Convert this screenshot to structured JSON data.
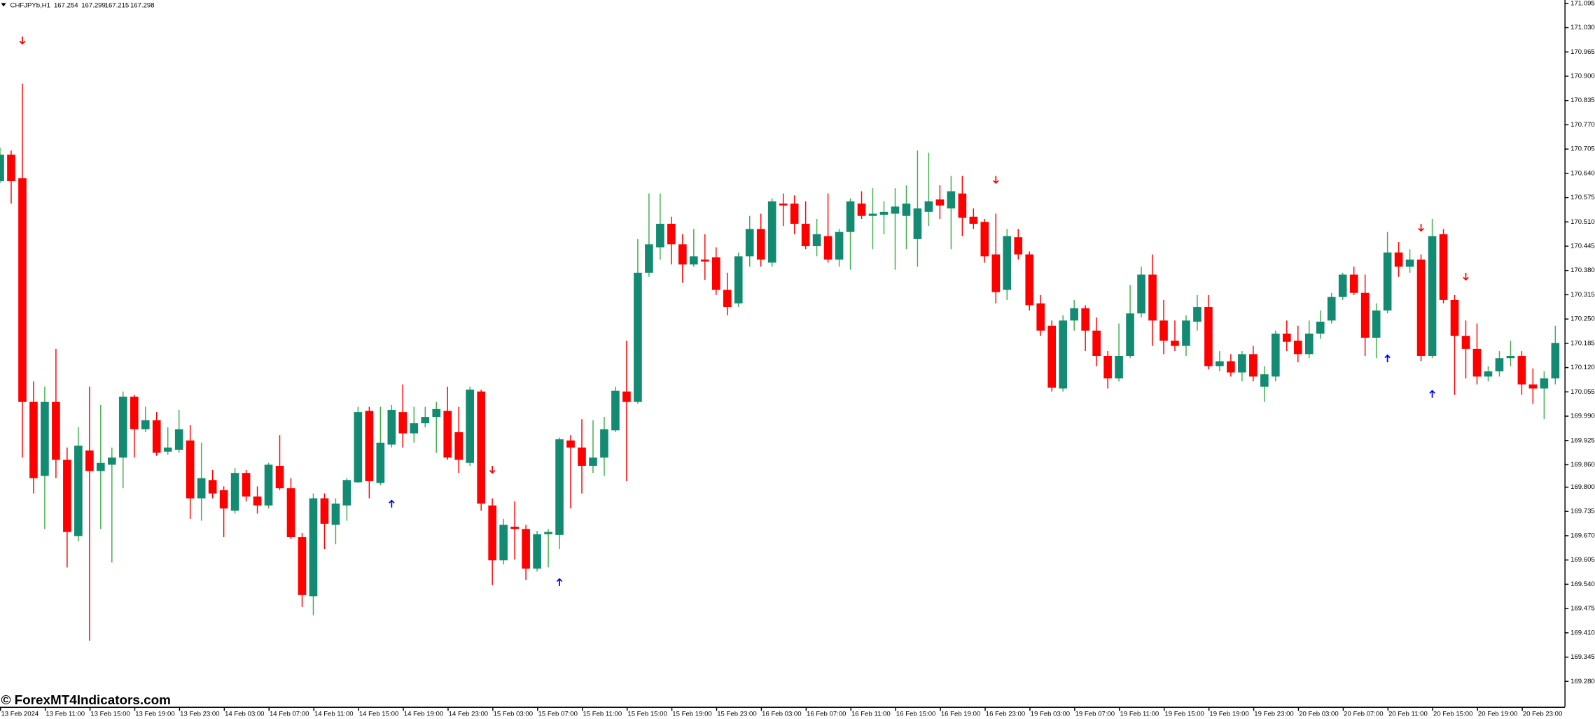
{
  "header": {
    "symbol": "CHFJPYb,H1",
    "ohlc": [
      167.254,
      167.299,
      167.215,
      167.298
    ]
  },
  "watermark": "© ForexMT4Indicators.com",
  "chart_data": {
    "type": "candlestick",
    "up_color": "#138a72",
    "down_color": "#ff0000",
    "up_wick_color": "#3fae49",
    "down_wick_color": "#ff0000",
    "buy_signal_color": "#0000ff",
    "sell_signal_color": "#ff0000",
    "ylim": [
      169.212,
      171.104
    ],
    "yticks": [
      171.095,
      {
        "value": 171.03,
        "label": "171.030"
      },
      170.965,
      {
        "value": 170.9,
        "label": "170.900"
      },
      170.835,
      {
        "value": 170.77,
        "label": "170.770"
      },
      170.705,
      {
        "value": 170.64,
        "label": "170.640"
      },
      170.575,
      {
        "value": 170.51,
        "label": "170.510"
      },
      170.445,
      {
        "value": 170.38,
        "label": "170.380"
      },
      170.315,
      {
        "value": 170.25,
        "label": "170.250"
      },
      170.185,
      {
        "value": 170.12,
        "label": "170.120"
      },
      170.055,
      {
        "value": 169.99,
        "label": "169.990"
      },
      169.925,
      {
        "value": 169.86,
        "label": "169.860"
      },
      {
        "value": 169.8,
        "label": "169.800"
      },
      169.735,
      {
        "value": 169.67,
        "label": "169.670"
      },
      169.605,
      {
        "value": 169.54,
        "label": "169.540"
      },
      169.475,
      {
        "value": 169.41,
        "label": "169.410"
      },
      169.345,
      {
        "value": 169.28,
        "label": "169.280"
      }
    ],
    "categories": [
      "13 Feb 2024",
      null,
      null,
      null,
      "13 Feb 11:00",
      null,
      null,
      null,
      "13 Feb 15:00",
      null,
      null,
      null,
      "13 Feb 19:00",
      null,
      null,
      null,
      "13 Feb 23:00",
      null,
      null,
      null,
      "14 Feb 03:00",
      null,
      null,
      null,
      "14 Feb 07:00",
      null,
      null,
      null,
      "14 Feb 11:00",
      null,
      null,
      null,
      "14 Feb 15:00",
      null,
      null,
      null,
      "14 Feb 19:00",
      null,
      null,
      null,
      "14 Feb 23:00",
      null,
      null,
      null,
      "15 Feb 03:00",
      null,
      null,
      null,
      "15 Feb 07:00",
      null,
      null,
      null,
      "15 Feb 11:00",
      null,
      null,
      null,
      "15 Feb 15:00",
      null,
      null,
      null,
      "15 Feb 19:00",
      null,
      null,
      null,
      "15 Feb 23:00",
      null,
      null,
      null,
      "16 Feb 03:00",
      null,
      null,
      null,
      "16 Feb 07:00",
      null,
      null,
      null,
      "16 Feb 11:00",
      null,
      null,
      null,
      "16 Feb 15:00",
      null,
      null,
      null,
      "16 Feb 19:00",
      null,
      null,
      null,
      "16 Feb 23:00",
      null,
      null,
      null,
      "19 Feb 03:00",
      null,
      null,
      null,
      "19 Feb 07:00",
      null,
      null,
      null,
      "19 Feb 11:00",
      null,
      null,
      null,
      "19 Feb 15:00",
      null,
      null,
      null,
      "19 Feb 19:00",
      null,
      null,
      null,
      "19 Feb 23:00",
      null,
      null,
      null,
      "20 Feb 03:00",
      null,
      null,
      null,
      "20 Feb 07:00",
      null,
      null,
      null,
      "20 Feb 11:00",
      null,
      null,
      null,
      "20 Feb 15:00",
      null,
      null,
      null,
      "20 Feb 19:00",
      null,
      null,
      null,
      "20 Feb 23:00",
      null,
      null,
      null
    ],
    "open": [
      170.619,
      170.69,
      170.627,
      170.028,
      169.83,
      170.028,
      169.873,
      169.669,
      169.898,
      169.843,
      169.86,
      169.879,
      170.042,
      169.955,
      169.979,
      169.895,
      169.9,
      169.925,
      169.77,
      169.819,
      169.792,
      169.737,
      169.838,
      169.775,
      169.751,
      169.857,
      169.797,
      169.666,
      169.508,
      169.77,
      169.699,
      169.751,
      169.813,
      170.004,
      169.811,
      169.914,
      170.001,
      169.944,
      169.971,
      169.988,
      170.004,
      169.947,
      169.865,
      170.056,
      169.751,
      169.604,
      169.694,
      169.688,
      169.582,
      169.674,
      169.672,
      169.925,
      169.906,
      169.857,
      169.879,
      169.952,
      170.056,
      170.028,
      170.374,
      170.442,
      170.505,
      170.45,
      170.396,
      170.409,
      170.415,
      170.328,
      170.292,
      170.418,
      170.491,
      170.401,
      170.559,
      170.559,
      170.505,
      170.445,
      170.472,
      170.409,
      170.483,
      170.559,
      170.526,
      170.529,
      170.532,
      170.526,
      170.464,
      170.537,
      170.57,
      170.546,
      170.586,
      170.524,
      170.51,
      170.423,
      170.328,
      170.469,
      170.423,
      170.292,
      170.232,
      170.064,
      170.246,
      170.279,
      170.219,
      170.151,
      170.091,
      170.151,
      170.265,
      170.369,
      170.246,
      170.192,
      170.178,
      170.243,
      170.282,
      170.124,
      170.137,
      170.107,
      170.156,
      170.069,
      170.096,
      170.211,
      170.192,
      170.156,
      170.211,
      170.246,
      170.309,
      170.369,
      170.32,
      170.2,
      170.273,
      170.428,
      170.39,
      170.409,
      170.151,
      170.477,
      170.301,
      170.205,
      170.17,
      170.096,
      170.11,
      170.145,
      170.151,
      170.075,
      170.064,
      170.091
    ],
    "high": [
      170.709,
      170.701,
      170.88,
      170.083,
      170.069,
      170.17,
      169.906,
      169.96,
      170.069,
      170.02,
      169.906,
      170.056,
      170.047,
      170.015,
      170.001,
      169.96,
      170.007,
      169.966,
      169.919,
      169.846,
      169.802,
      169.851,
      169.846,
      169.802,
      169.865,
      169.939,
      169.824,
      169.677,
      169.783,
      169.783,
      169.77,
      169.824,
      170.015,
      170.015,
      170.015,
      170.02,
      170.075,
      170.015,
      170.015,
      170.028,
      170.069,
      170.015,
      170.069,
      170.061,
      169.77,
      169.715,
      169.762,
      169.699,
      169.683,
      169.688,
      169.933,
      169.939,
      169.982,
      169.979,
      169.988,
      170.069,
      170.192,
      170.464,
      170.586,
      170.586,
      170.524,
      170.477,
      170.491,
      170.477,
      170.442,
      170.374,
      170.428,
      170.526,
      170.532,
      170.573,
      170.586,
      170.581,
      170.565,
      170.518,
      170.586,
      170.491,
      170.573,
      170.592,
      170.6,
      170.565,
      170.6,
      170.608,
      170.701,
      170.695,
      170.608,
      170.633,
      170.633,
      170.546,
      170.518,
      170.532,
      170.491,
      170.491,
      170.431,
      170.314,
      170.246,
      170.26,
      170.301,
      170.287,
      170.254,
      170.164,
      170.238,
      170.341,
      170.39,
      170.423,
      170.301,
      170.246,
      170.26,
      170.314,
      170.314,
      170.164,
      170.156,
      170.164,
      170.178,
      170.124,
      170.219,
      170.246,
      170.232,
      170.246,
      170.273,
      170.32,
      170.374,
      170.39,
      170.369,
      170.292,
      170.483,
      170.456,
      170.437,
      170.423,
      170.518,
      170.491,
      170.314,
      170.246,
      170.238,
      170.124,
      170.164,
      170.192,
      170.164,
      170.118,
      170.11,
      170.232
    ],
    "low": [
      170.614,
      170.559,
      169.879,
      169.783,
      169.688,
      169.824,
      169.585,
      169.655,
      169.389,
      169.688,
      169.598,
      169.797,
      169.879,
      169.947,
      169.884,
      169.887,
      169.892,
      169.715,
      169.71,
      169.77,
      169.666,
      169.729,
      169.762,
      169.729,
      169.743,
      169.792,
      169.661,
      169.479,
      169.457,
      169.634,
      169.647,
      169.71,
      169.811,
      169.77,
      169.805,
      169.906,
      169.906,
      169.919,
      169.96,
      169.892,
      169.873,
      169.838,
      169.857,
      169.737,
      169.538,
      169.593,
      169.606,
      169.552,
      169.574,
      169.585,
      169.634,
      169.743,
      169.783,
      169.838,
      169.83,
      169.947,
      169.816,
      170.023,
      170.363,
      170.409,
      170.396,
      170.347,
      170.39,
      170.355,
      170.314,
      170.26,
      170.282,
      170.39,
      170.39,
      170.39,
      170.499,
      170.477,
      170.437,
      170.418,
      170.401,
      170.39,
      170.382,
      170.518,
      170.437,
      170.477,
      170.382,
      170.437,
      170.39,
      170.499,
      170.518,
      170.437,
      170.472,
      170.491,
      170.401,
      170.292,
      170.301,
      170.409,
      170.273,
      170.205,
      170.056,
      170.056,
      170.219,
      170.164,
      170.124,
      170.064,
      170.083,
      170.145,
      170.254,
      170.178,
      170.156,
      170.164,
      170.151,
      170.219,
      170.115,
      170.11,
      170.096,
      170.083,
      170.083,
      170.028,
      170.083,
      170.164,
      170.134,
      170.145,
      170.197,
      170.238,
      170.301,
      170.314,
      170.151,
      170.145,
      170.265,
      170.363,
      170.374,
      170.137,
      170.145,
      170.292,
      170.047,
      170.091,
      170.075,
      170.083,
      170.096,
      170.124,
      170.047,
      170.023,
      169.982,
      170.075
    ],
    "close": [
      170.69,
      170.619,
      170.028,
      169.824,
      170.028,
      169.873,
      169.68,
      169.911,
      169.843,
      169.865,
      169.879,
      170.042,
      169.955,
      169.979,
      169.892,
      169.906,
      169.955,
      169.77,
      169.824,
      169.783,
      169.743,
      169.838,
      169.775,
      169.751,
      169.86,
      169.797,
      169.666,
      169.511,
      169.77,
      169.702,
      169.756,
      169.819,
      170.001,
      169.816,
      169.919,
      170.007,
      169.944,
      169.971,
      169.988,
      170.009,
      169.879,
      169.873,
      170.061,
      169.756,
      169.604,
      169.699,
      169.688,
      169.582,
      169.674,
      169.68,
      169.928,
      169.906,
      169.857,
      169.879,
      169.955,
      170.058,
      170.028,
      170.374,
      170.45,
      170.505,
      170.45,
      170.396,
      170.418,
      170.404,
      170.328,
      170.282,
      170.418,
      170.491,
      170.409,
      170.565,
      170.554,
      170.505,
      170.445,
      170.477,
      170.409,
      170.483,
      170.565,
      170.526,
      170.532,
      170.537,
      170.551,
      170.559,
      170.546,
      170.565,
      170.554,
      170.592,
      170.521,
      170.505,
      170.418,
      170.322,
      170.472,
      170.423,
      170.287,
      170.219,
      170.066,
      170.246,
      170.279,
      170.219,
      170.151,
      170.091,
      170.151,
      170.265,
      170.369,
      170.246,
      170.192,
      170.178,
      170.246,
      170.282,
      170.124,
      170.137,
      170.107,
      170.156,
      170.096,
      170.102,
      170.211,
      170.189,
      170.156,
      170.211,
      170.243,
      170.309,
      170.369,
      170.32,
      170.2,
      170.273,
      170.428,
      170.39,
      170.409,
      170.151,
      170.472,
      170.301,
      170.205,
      170.17,
      170.096,
      170.11,
      170.145,
      170.151,
      170.075,
      170.064,
      170.091,
      170.186
    ],
    "sell_signals": [
      {
        "bar": 2,
        "price": 170.995
      },
      {
        "bar": 44,
        "price": 169.846
      },
      {
        "bar": 89,
        "price": 170.622
      },
      {
        "bar": 127,
        "price": 170.494
      },
      {
        "bar": 131,
        "price": 170.363
      }
    ],
    "buy_signals": [
      {
        "bar": 35,
        "price": 169.756
      },
      {
        "bar": 50,
        "price": 169.546
      },
      {
        "bar": 124,
        "price": 170.145
      },
      {
        "bar": 128,
        "price": 170.05
      }
    ]
  }
}
